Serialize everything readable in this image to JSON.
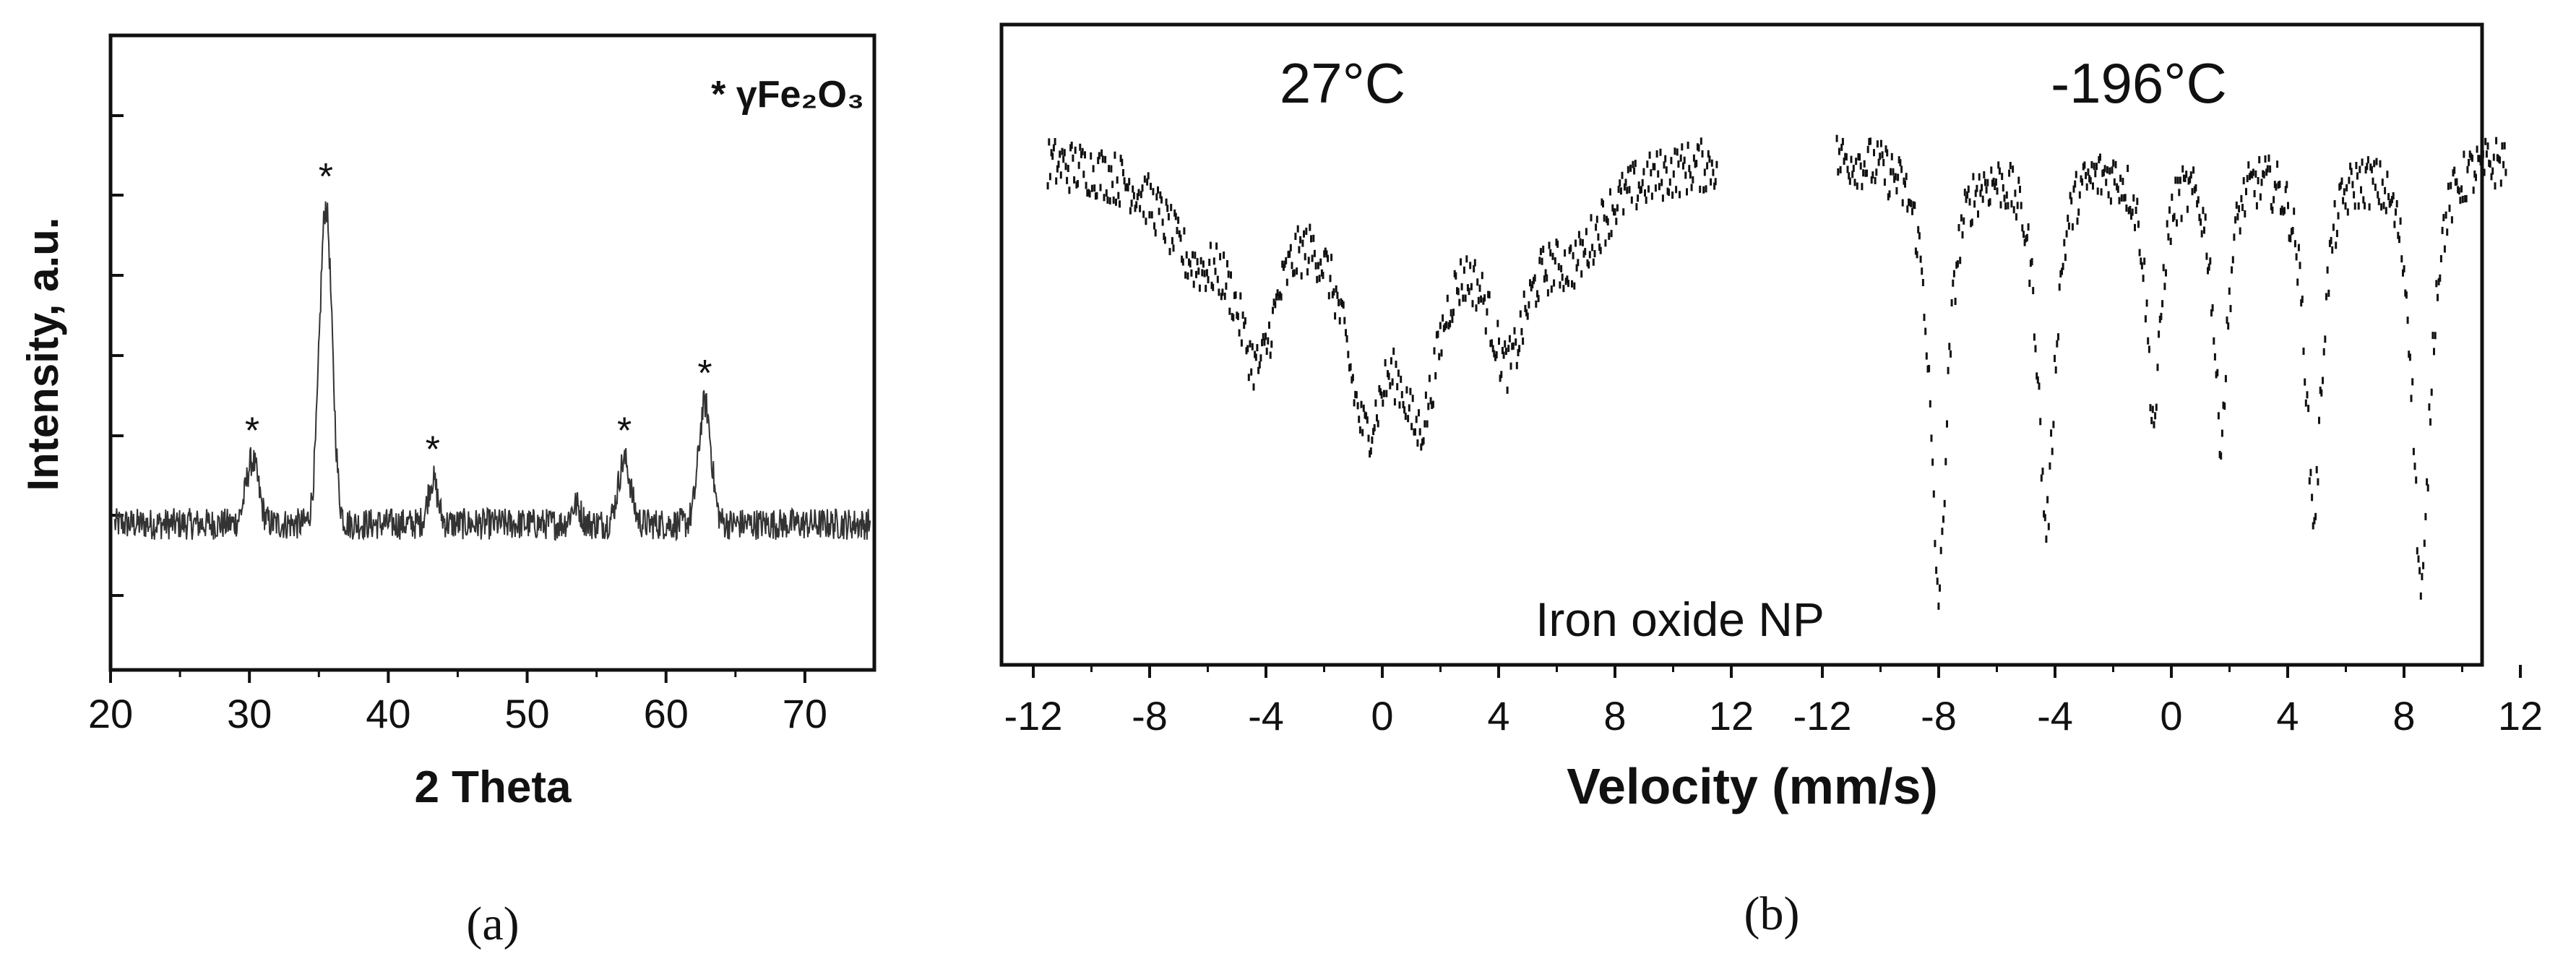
{
  "panel_a": {
    "caption": "(a)",
    "legend": "* γFe₂O₃",
    "star": "*"
  },
  "panel_b": {
    "caption": "(b)",
    "sample_label": "Iron oxide NP"
  },
  "chart_data": [
    {
      "id": "a",
      "type": "line",
      "title": "",
      "xlabel": "2 Theta",
      "ylabel": "Intensity, a.u.",
      "xlim": [
        20,
        75
      ],
      "ylim": [
        0,
        1
      ],
      "xticks": [
        20,
        30,
        40,
        50,
        60,
        70
      ],
      "yticks_labeled": false,
      "grid": false,
      "legend": {
        "text": "* γFe₂O₃",
        "placement": "top-right"
      },
      "baseline": 0.23,
      "noise_amplitude": 0.025,
      "peaks": [
        {
          "x": 30.2,
          "height": 0.33,
          "width": 0.45,
          "marked": true
        },
        {
          "x": 35.5,
          "height": 0.73,
          "width": 0.45,
          "marked": true
        },
        {
          "x": 43.2,
          "height": 0.3,
          "width": 0.35,
          "marked": true
        },
        {
          "x": 53.5,
          "height": 0.26,
          "width": 0.35,
          "marked": false
        },
        {
          "x": 57.0,
          "height": 0.33,
          "width": 0.45,
          "marked": true
        },
        {
          "x": 62.8,
          "height": 0.42,
          "width": 0.45,
          "marked": true
        }
      ]
    },
    {
      "id": "b",
      "type": "scatter",
      "title": "",
      "xlabel": "Velocity (mm/s)",
      "ylabel": "",
      "ylim": [
        0,
        1
      ],
      "grid": false,
      "subplots": [
        {
          "label": "27°C",
          "xlim": [
            -12,
            12
          ],
          "xticks": [
            -12,
            -8,
            -4,
            0,
            4,
            8,
            12
          ],
          "data_range": [
            -11.5,
            11.5
          ],
          "baseline": 0.8,
          "noise_amplitude": 0.04,
          "points": 560,
          "dips": [
            {
              "x": -4.3,
              "depth": 0.27,
              "width": 0.9
            },
            {
              "x": -0.6,
              "depth": 0.34,
              "width": 0.9
            },
            {
              "x": 1.3,
              "depth": 0.33,
              "width": 0.9
            },
            {
              "x": 4.3,
              "depth": 0.26,
              "width": 0.9
            },
            {
              "x": -6.5,
              "depth": 0.12,
              "width": 1.3
            },
            {
              "x": 6.6,
              "depth": 0.12,
              "width": 1.3
            }
          ]
        },
        {
          "label": "-196°C",
          "xlim": [
            -12,
            12
          ],
          "xticks": [
            -12,
            -8,
            -4,
            0,
            4,
            8,
            12
          ],
          "data_range": [
            -11.5,
            11.5
          ],
          "baseline": 0.8,
          "noise_amplitude": 0.04,
          "points": 560,
          "dips": [
            {
              "x": -8.0,
              "depth": 0.68,
              "width": 0.35
            },
            {
              "x": -4.3,
              "depth": 0.57,
              "width": 0.35
            },
            {
              "x": -0.6,
              "depth": 0.4,
              "width": 0.3
            },
            {
              "x": 1.7,
              "depth": 0.42,
              "width": 0.3
            },
            {
              "x": 4.9,
              "depth": 0.55,
              "width": 0.35
            },
            {
              "x": 8.6,
              "depth": 0.68,
              "width": 0.35
            }
          ]
        }
      ]
    }
  ]
}
